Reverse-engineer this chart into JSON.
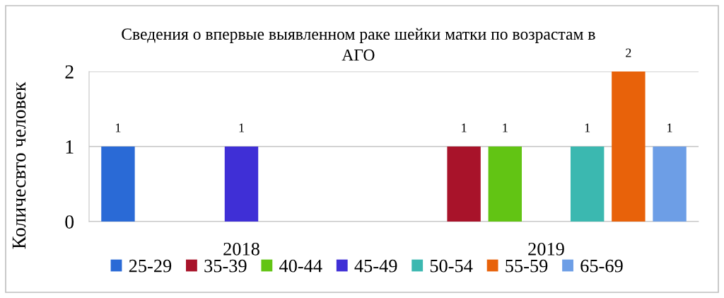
{
  "chart_data": {
    "type": "bar",
    "title": "Сведения о впервые выявленном раке шейки матки по возрастам в АГО",
    "ylabel": "Количесвто человек",
    "categories": [
      "2018",
      "2019"
    ],
    "series": [
      {
        "name": "25-29",
        "color": "#2a6ad6",
        "values": [
          1,
          null
        ]
      },
      {
        "name": "35-39",
        "color": "#a8132a",
        "values": [
          null,
          1
        ]
      },
      {
        "name": "40-44",
        "color": "#62c414",
        "values": [
          null,
          1
        ]
      },
      {
        "name": "45-49",
        "color": "#3f2fd6",
        "values": [
          1,
          null
        ]
      },
      {
        "name": "50-54",
        "color": "#3bb8b0",
        "values": [
          null,
          1
        ]
      },
      {
        "name": "55-59",
        "color": "#e8620a",
        "values": [
          null,
          2
        ]
      },
      {
        "name": "65-69",
        "color": "#6d9ee6",
        "values": [
          null,
          1
        ]
      }
    ],
    "ylim": [
      0,
      2
    ],
    "yticks": [
      0,
      1,
      2
    ],
    "grid": "y",
    "legend": "bottom",
    "data_labels": true
  }
}
